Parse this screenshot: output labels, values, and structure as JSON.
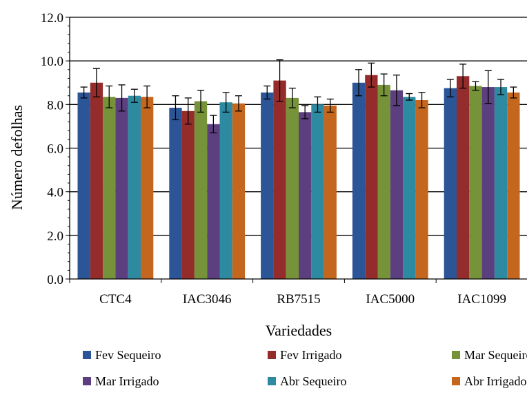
{
  "chart_data": {
    "type": "bar",
    "title": "",
    "xlabel": "Variedades",
    "ylabel": "Número defolhas",
    "ylim": [
      0,
      12
    ],
    "yticks": [
      "0.0",
      "2.0",
      "4.0",
      "6.0",
      "8.0",
      "10.0",
      "12.0"
    ],
    "grid": true,
    "legend_position": "bottom",
    "categories": [
      "CTC4",
      "IAC3046",
      "RB7515",
      "IAC5000",
      "IAC1099"
    ],
    "series": [
      {
        "name": "Fev Sequeiro",
        "color": "#2c5597",
        "values": [
          8.55,
          7.85,
          8.55,
          9.0,
          8.75
        ],
        "errors": [
          0.25,
          0.55,
          0.3,
          0.6,
          0.4
        ]
      },
      {
        "name": "Fev Irrigado",
        "color": "#942c2b",
        "values": [
          9.0,
          7.7,
          9.1,
          9.35,
          9.3
        ],
        "errors": [
          0.65,
          0.6,
          0.95,
          0.55,
          0.55
        ]
      },
      {
        "name": "Mar Sequeiro",
        "color": "#779339",
        "values": [
          8.35,
          8.15,
          8.3,
          8.9,
          8.85
        ],
        "errors": [
          0.5,
          0.5,
          0.45,
          0.5,
          0.2
        ]
      },
      {
        "name": "Mar Irrigado",
        "color": "#5c3f7f",
        "values": [
          8.3,
          7.1,
          7.65,
          8.65,
          8.8
        ],
        "errors": [
          0.6,
          0.4,
          0.3,
          0.7,
          0.75
        ]
      },
      {
        "name": "Abr Sequeiro",
        "color": "#2e8aa0",
        "values": [
          8.4,
          8.1,
          8.0,
          8.35,
          8.8
        ],
        "errors": [
          0.3,
          0.45,
          0.35,
          0.15,
          0.35
        ]
      },
      {
        "name": "Abr Irrigado",
        "color": "#c5661f",
        "values": [
          8.35,
          8.05,
          7.95,
          8.2,
          8.55
        ],
        "errors": [
          0.5,
          0.35,
          0.3,
          0.35,
          0.25
        ]
      }
    ]
  }
}
